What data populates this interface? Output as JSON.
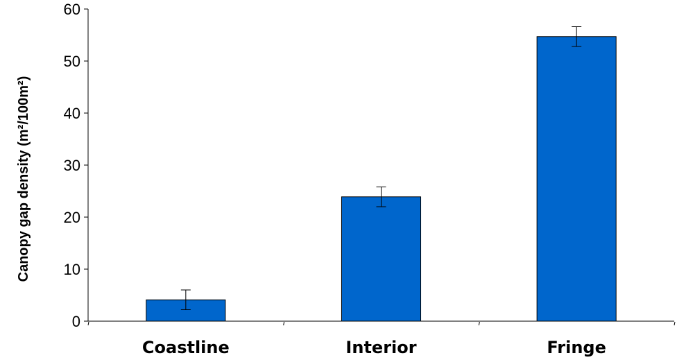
{
  "chart_data": {
    "type": "bar",
    "title": "",
    "xlabel": "",
    "ylabel": "Canopy gap density (m²/100m²)",
    "categories": [
      "Coastline",
      "Interior",
      "Fringe"
    ],
    "values": [
      4.1,
      23.9,
      54.7
    ],
    "error": [
      1.9,
      1.9,
      1.9
    ],
    "ylim": [
      0,
      60
    ],
    "yticks": [
      0,
      10,
      20,
      30,
      40,
      50,
      60
    ],
    "grid": false,
    "legend": "none",
    "bar_color": "#0066cc"
  }
}
